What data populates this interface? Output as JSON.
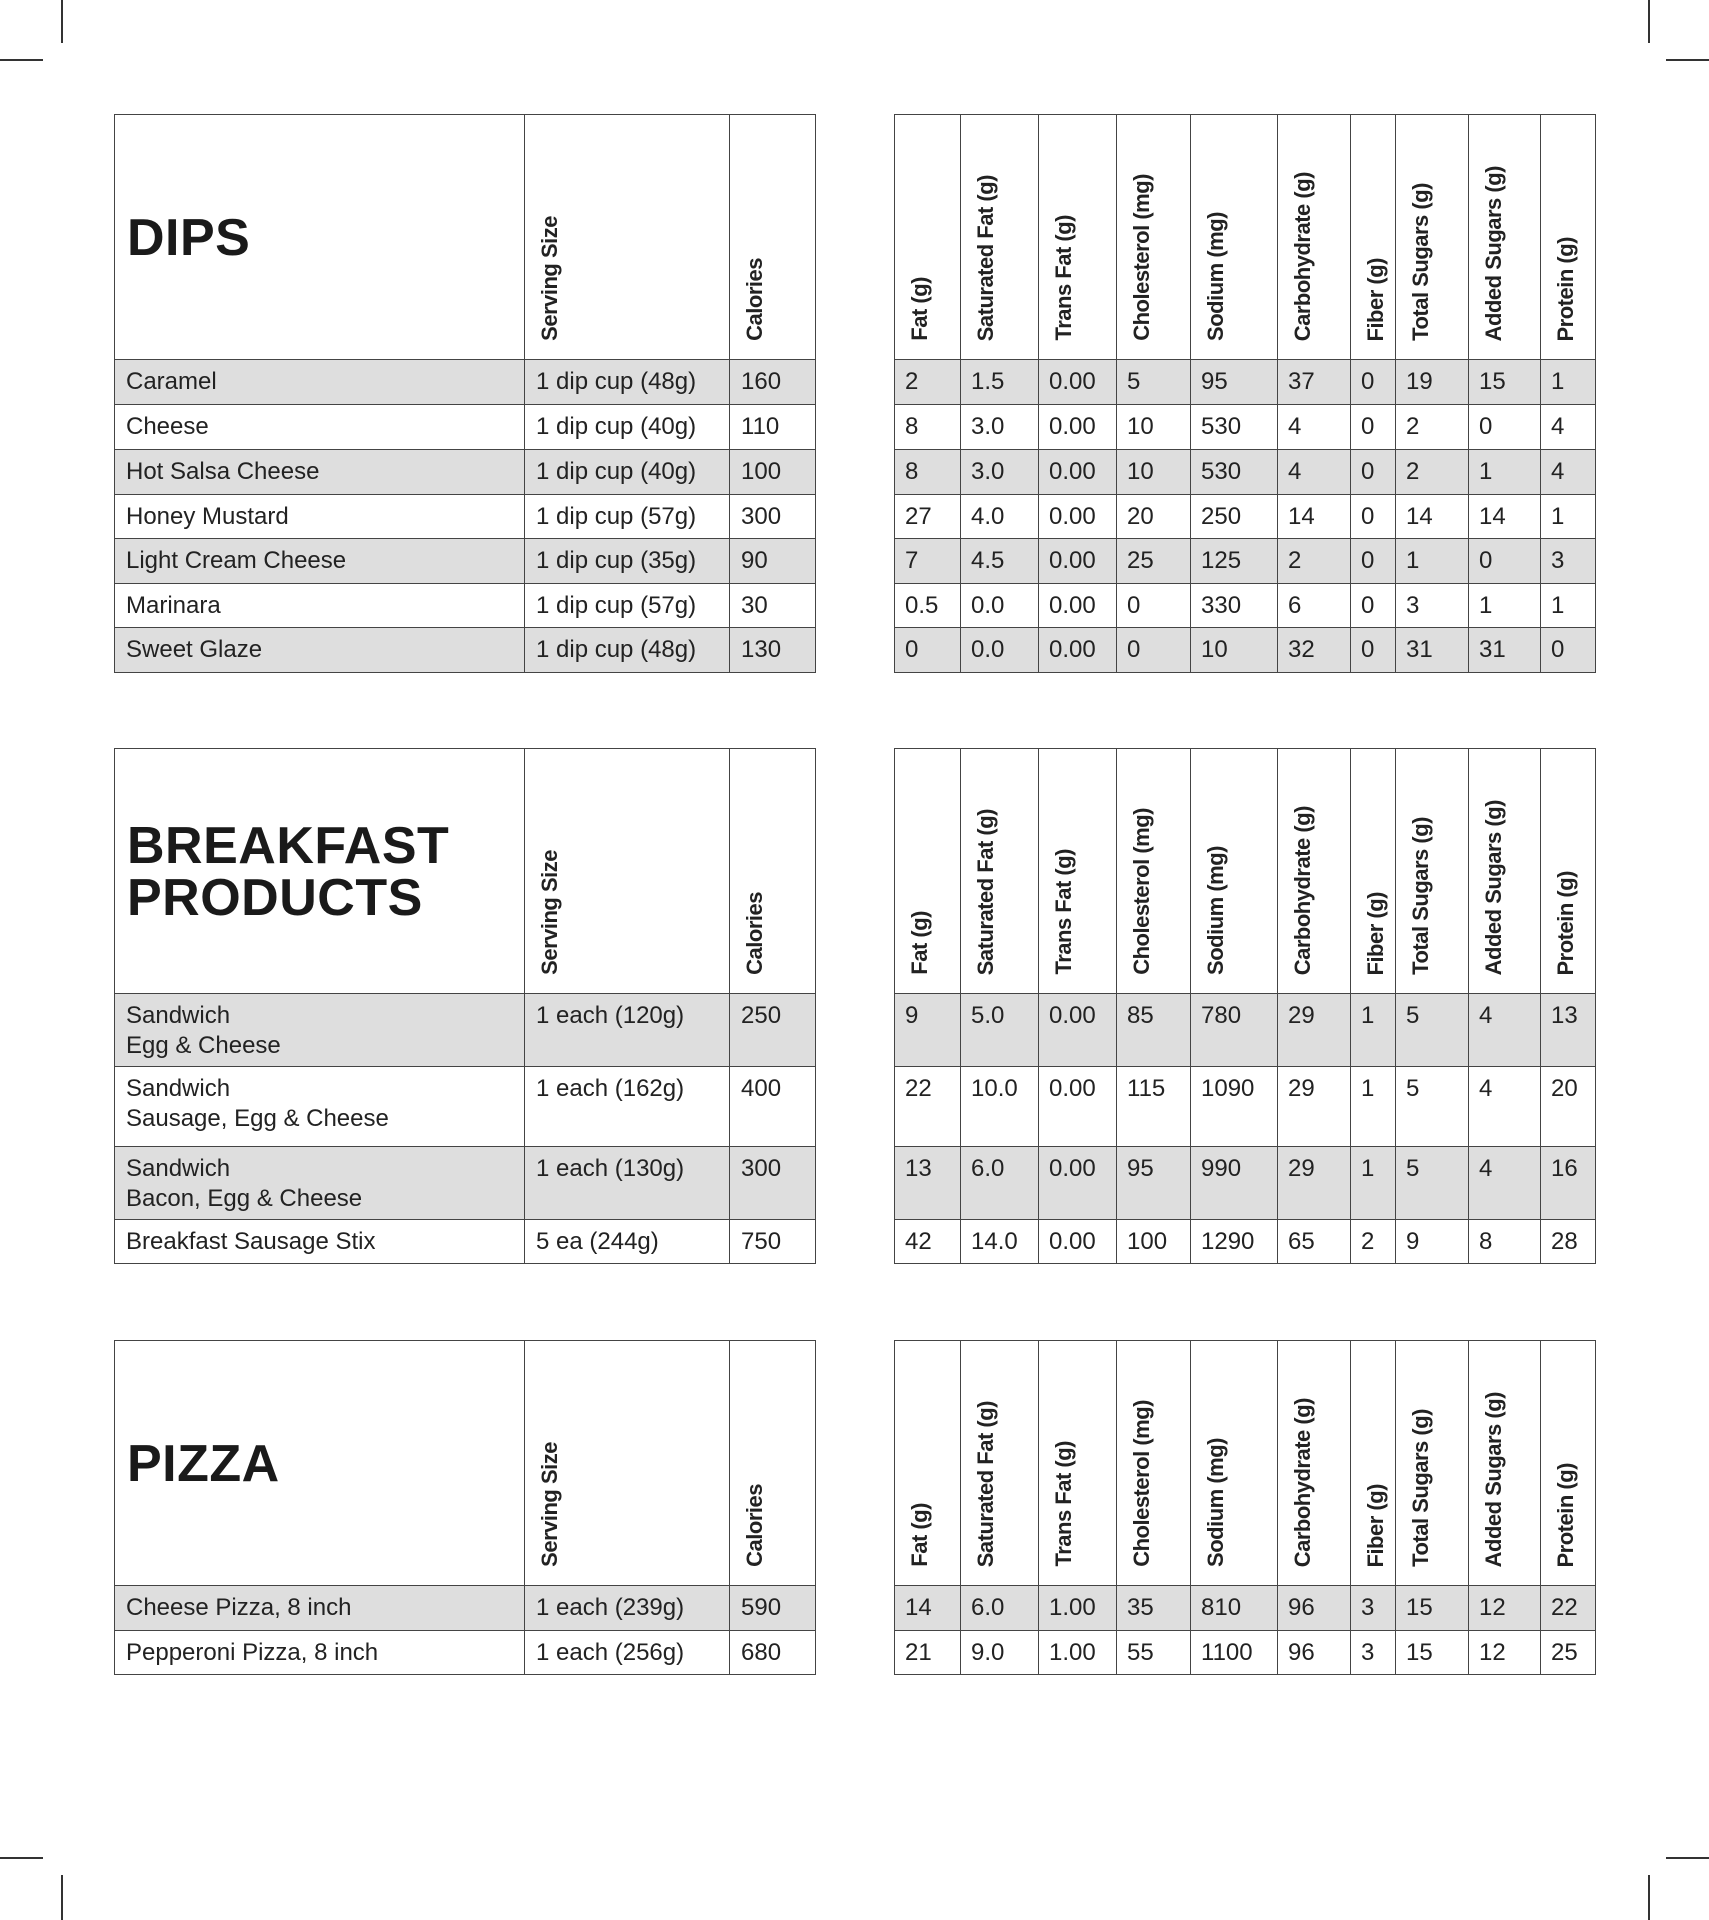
{
  "left_headers": [
    "Serving Size",
    "Calories"
  ],
  "right_headers": [
    "Fat (g)",
    "Saturated Fat (g)",
    "Trans Fat (g)",
    "Cholesterol (mg)",
    "Sodium (mg)",
    "Carbohydrate (g)",
    "Fiber (g)",
    "Total Sugars (g)",
    "Added Sugars (g)",
    "Protein (g)"
  ],
  "sections": [
    {
      "title_lines": [
        "DIPS"
      ],
      "rows": [
        {
          "name_lines": [
            "Caramel"
          ],
          "serving": "1 dip cup (48g)",
          "calories": "160",
          "values": [
            "2",
            "1.5",
            "0.00",
            "5",
            "95",
            "37",
            "0",
            "19",
            "15",
            "1"
          ]
        },
        {
          "name_lines": [
            "Cheese"
          ],
          "serving": "1 dip cup (40g)",
          "calories": "110",
          "values": [
            "8",
            "3.0",
            "0.00",
            "10",
            "530",
            "4",
            "0",
            "2",
            "0",
            "4"
          ]
        },
        {
          "name_lines": [
            "Hot Salsa Cheese"
          ],
          "serving": "1 dip cup (40g)",
          "calories": "100",
          "values": [
            "8",
            "3.0",
            "0.00",
            "10",
            "530",
            "4",
            "0",
            "2",
            "1",
            "4"
          ]
        },
        {
          "name_lines": [
            "Honey Mustard"
          ],
          "serving": "1 dip cup (57g)",
          "calories": "300",
          "values": [
            "27",
            "4.0",
            "0.00",
            "20",
            "250",
            "14",
            "0",
            "14",
            "14",
            "1"
          ]
        },
        {
          "name_lines": [
            "Light Cream Cheese"
          ],
          "serving": "1 dip cup (35g)",
          "calories": "90",
          "values": [
            "7",
            "4.5",
            "0.00",
            "25",
            "125",
            "2",
            "0",
            "1",
            "0",
            "3"
          ]
        },
        {
          "name_lines": [
            "Marinara"
          ],
          "serving": "1 dip cup (57g)",
          "calories": "30",
          "values": [
            "0.5",
            "0.0",
            "0.00",
            "0",
            "330",
            "6",
            "0",
            "3",
            "1",
            "1"
          ]
        },
        {
          "name_lines": [
            "Sweet Glaze"
          ],
          "serving": "1 dip cup (48g)",
          "calories": "130",
          "values": [
            "0",
            "0.0",
            "0.00",
            "0",
            "10",
            "32",
            "0",
            "31",
            "31",
            "0"
          ]
        }
      ]
    },
    {
      "title_lines": [
        "BREAKFAST",
        "PRODUCTS"
      ],
      "rows": [
        {
          "name_lines": [
            "Sandwich",
            "Egg & Cheese"
          ],
          "serving": "1 each (120g)",
          "calories": "250",
          "values": [
            "9",
            "5.0",
            "0.00",
            "85",
            "780",
            "29",
            "1",
            "5",
            "4",
            "13"
          ]
        },
        {
          "name_lines": [
            "Sandwich",
            "Sausage, Egg & Cheese"
          ],
          "serving": "1 each (162g)",
          "calories": "400",
          "values": [
            "22",
            "10.0",
            "0.00",
            "115",
            "1090",
            "29",
            "1",
            "5",
            "4",
            "20"
          ]
        },
        {
          "name_lines": [
            "Sandwich",
            "Bacon, Egg & Cheese"
          ],
          "serving": "1 each (130g)",
          "calories": "300",
          "values": [
            "13",
            "6.0",
            "0.00",
            "95",
            "990",
            "29",
            "1",
            "5",
            "4",
            "16"
          ]
        },
        {
          "name_lines": [
            "Breakfast Sausage Stix"
          ],
          "serving": "5 ea (244g)",
          "calories": "750",
          "values": [
            "42",
            "14.0",
            "0.00",
            "100",
            "1290",
            "65",
            "2",
            "9",
            "8",
            "28"
          ]
        }
      ]
    },
    {
      "title_lines": [
        "PIZZA"
      ],
      "rows": [
        {
          "name_lines": [
            "Cheese Pizza, 8 inch"
          ],
          "serving": "1 each (239g)",
          "calories": "590",
          "values": [
            "14",
            "6.0",
            "1.00",
            "35",
            "810",
            "96",
            "3",
            "15",
            "12",
            "22"
          ]
        },
        {
          "name_lines": [
            "Pepperoni Pizza, 8 inch"
          ],
          "serving": "1 each (256g)",
          "calories": "680",
          "values": [
            "21",
            "9.0",
            "1.00",
            "55",
            "1100",
            "96",
            "3",
            "15",
            "12",
            "25"
          ]
        }
      ]
    }
  ]
}
